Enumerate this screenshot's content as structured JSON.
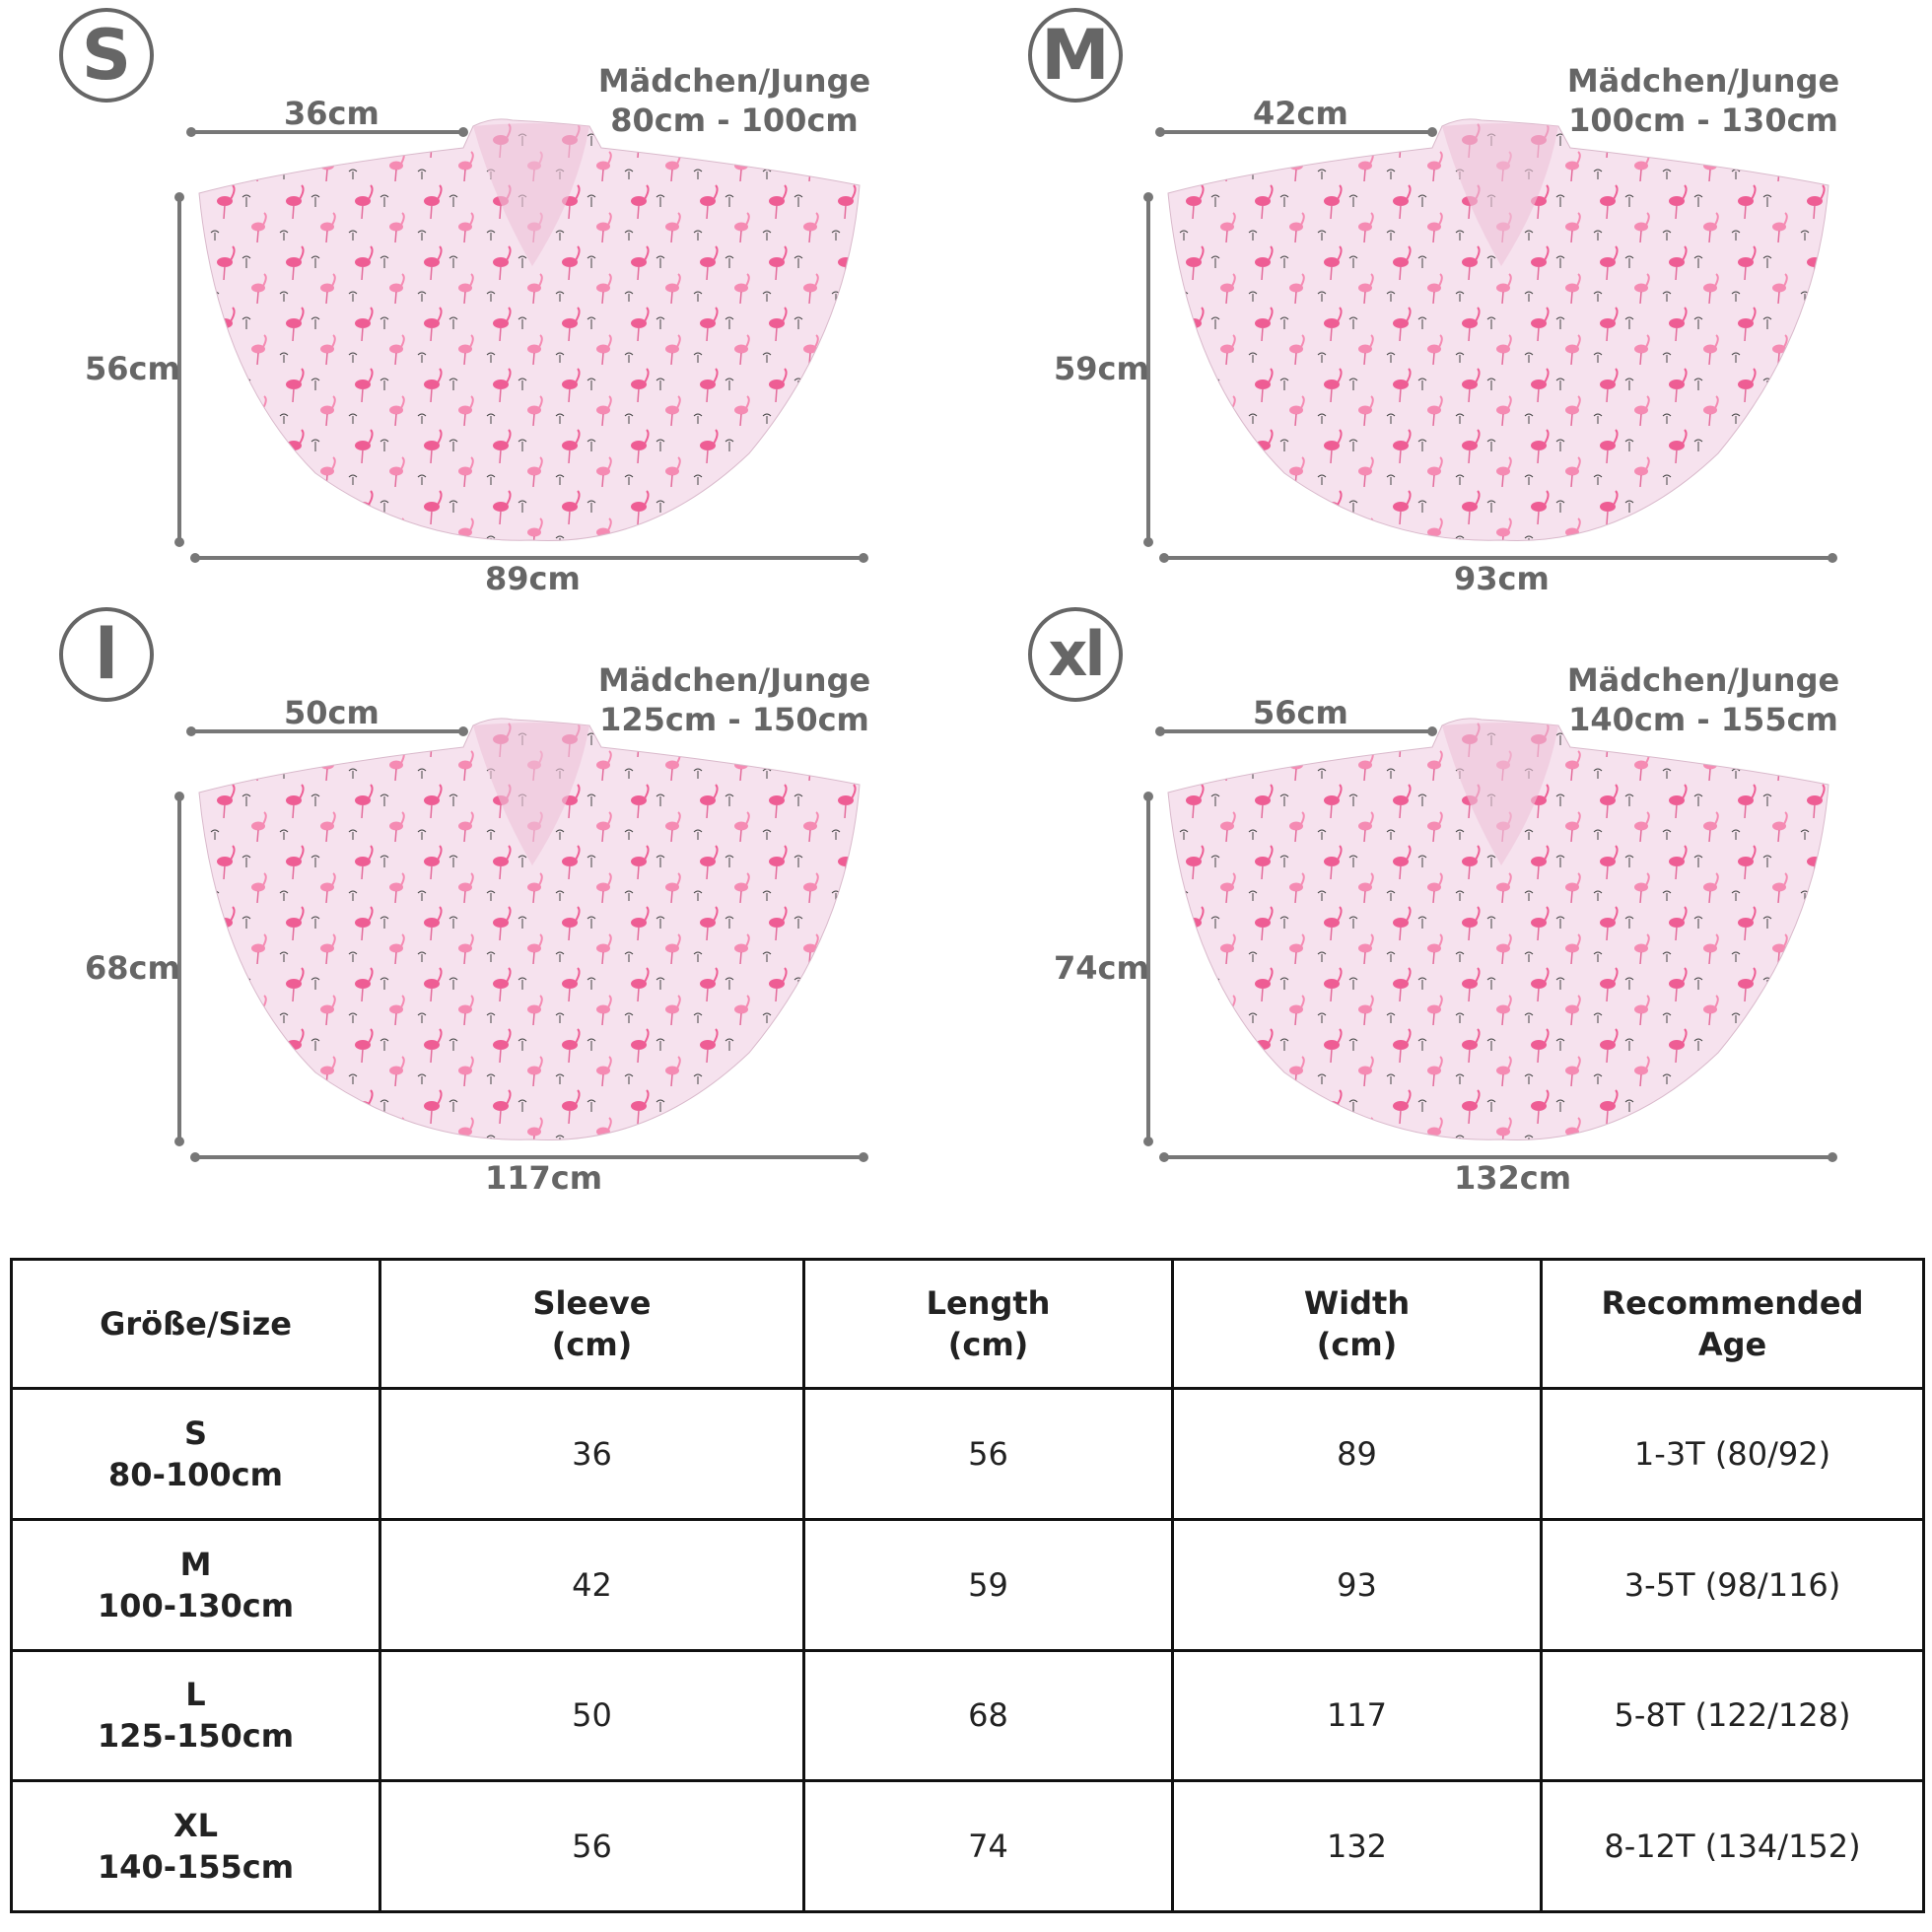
{
  "panels": [
    {
      "size": "S",
      "gender": "Mädchen/Junge",
      "height_range": "80cm - 100cm",
      "sleeve": "36cm",
      "length": "56cm",
      "width": "89cm"
    },
    {
      "size": "M",
      "gender": "Mädchen/Junge",
      "height_range": "100cm - 130cm",
      "sleeve": "42cm",
      "length": "59cm",
      "width": "93cm"
    },
    {
      "size": "l",
      "gender": "Mädchen/Junge",
      "height_range": "125cm - 150cm",
      "sleeve": "50cm",
      "length": "68cm",
      "width": "117cm"
    },
    {
      "size": "xl",
      "gender": "Mädchen/Junge",
      "height_range": "140cm - 155cm",
      "sleeve": "56cm",
      "length": "74cm",
      "width": "132cm"
    }
  ],
  "table": {
    "headers": [
      {
        "line1": "Größe/Size",
        "line2": ""
      },
      {
        "line1": "Sleeve",
        "line2": "(cm)"
      },
      {
        "line1": "Length",
        "line2": "(cm)"
      },
      {
        "line1": "Width",
        "line2": "(cm)"
      },
      {
        "line1": "Recommended",
        "line2": "Age"
      }
    ],
    "rows": [
      {
        "size": "S",
        "range": "80-100cm",
        "sleeve": "36",
        "length": "56",
        "width": "89",
        "age": "1-3T (80/92)"
      },
      {
        "size": "M",
        "range": "100-130cm",
        "sleeve": "42",
        "length": "59",
        "width": "93",
        "age": "3-5T (98/116)"
      },
      {
        "size": "L",
        "range": "125-150cm",
        "sleeve": "50",
        "length": "68",
        "width": "117",
        "age": "5-8T (122/128)"
      },
      {
        "size": "XL",
        "range": "140-155cm",
        "sleeve": "56",
        "length": "74",
        "width": "132",
        "age": "8-12T (134/152)"
      }
    ]
  },
  "colors": {
    "fabric": "#f3dbe8",
    "flamingo": "#ee5d94",
    "line": "#777777"
  }
}
